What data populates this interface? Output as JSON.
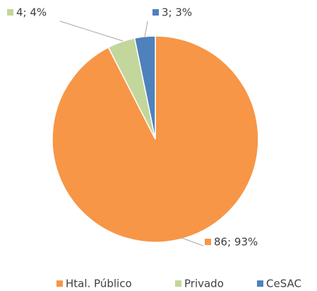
{
  "chart_data": {
    "type": "pie",
    "categories": [
      "Htal. Público",
      "Privado",
      "CeSAC"
    ],
    "values": [
      86,
      4,
      3
    ],
    "value_labels": [
      "86; 93%",
      "4; 4%",
      "3; 3%"
    ],
    "colors": [
      "#f79646",
      "#c3d69b",
      "#4f81bd"
    ],
    "legend": "bottom"
  }
}
